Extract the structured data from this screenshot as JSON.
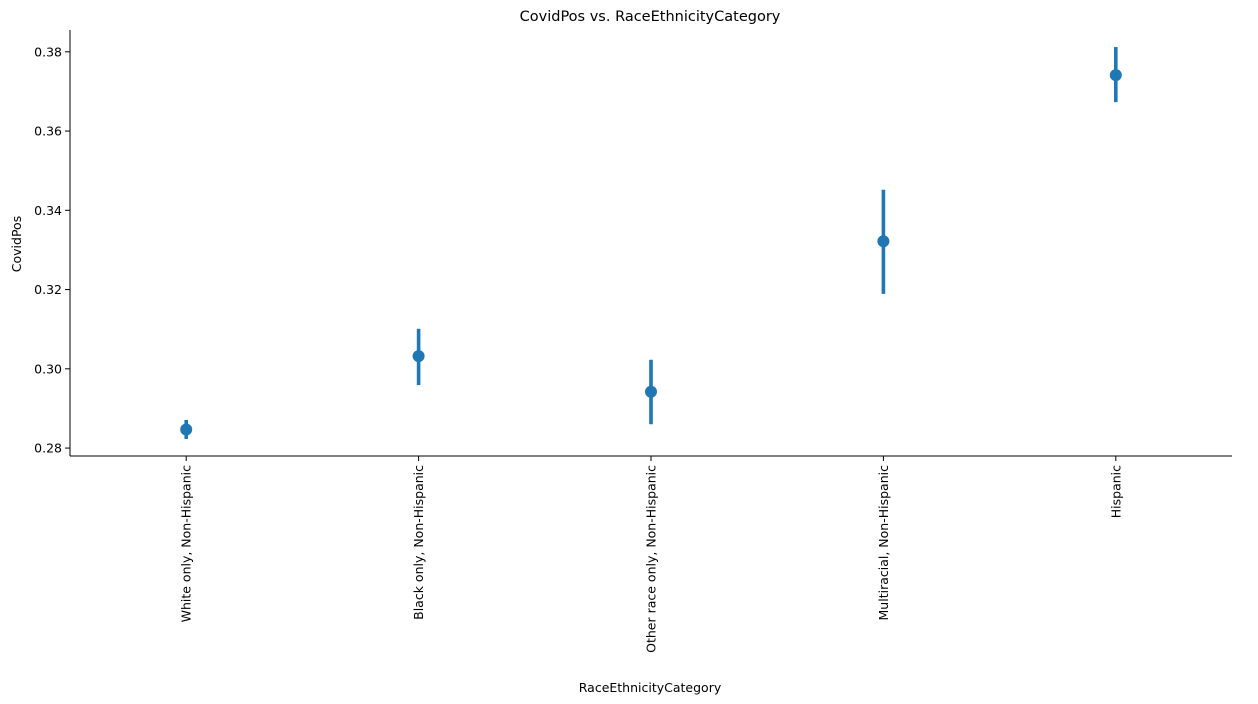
{
  "chart_data": {
    "type": "scatter",
    "title": "CovidPos vs. RaceEthnicityCategory",
    "xlabel": "RaceEthnicityCategory",
    "ylabel": "CovidPos",
    "categories": [
      "White only, Non-Hispanic",
      "Black only, Non-Hispanic",
      "Other race only, Non-Hispanic",
      "Multiracial, Non-Hispanic",
      "Hispanic"
    ],
    "series": [
      {
        "values": [
          0.2847,
          0.3032,
          0.2942,
          0.3322,
          0.3741
        ],
        "ci_low": [
          0.2823,
          0.2959,
          0.286,
          0.3189,
          0.3673
        ],
        "ci_high": [
          0.2871,
          0.3101,
          0.3023,
          0.3452,
          0.3812
        ]
      }
    ],
    "yticks": [
      0.28,
      0.3,
      0.32,
      0.34,
      0.36,
      0.38
    ],
    "ytick_labels": [
      "0.28",
      "0.30",
      "0.32",
      "0.34",
      "0.36",
      "0.38"
    ],
    "ylim": [
      0.278,
      0.3855
    ],
    "grid": false,
    "color": "#1f77b4",
    "x_tick_rotation": "vertical"
  }
}
